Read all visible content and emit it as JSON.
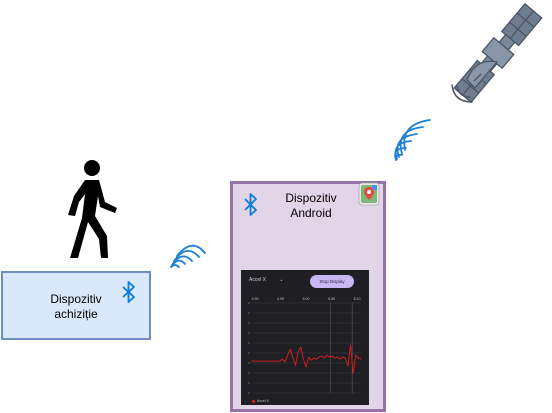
{
  "nodes": {
    "acquisition": {
      "line1": "Dispozitiv",
      "line2": "achiziție"
    },
    "android": {
      "line1": "Dispozitiv",
      "line2": "Android"
    }
  },
  "phone": {
    "selector_label": "Accel X",
    "selector_caret": "⌄",
    "button_label": "Stop Display",
    "axis_ticks": [
      "4.90",
      "4.95",
      "5.00",
      "5.05",
      "5.10"
    ],
    "legend": "Accel X"
  },
  "icons": [
    "walking-person-icon",
    "bluetooth-icon",
    "wireless-signal-icon",
    "satellite-icon",
    "maps-app-icon"
  ],
  "colors": {
    "acq_fill": "#dae8fc",
    "acq_stroke": "#6c8ebf",
    "android_fill": "#e1d5e7",
    "android_stroke": "#9673a6",
    "signal": "#1e7fd8",
    "bluetooth": "#0a7be0",
    "trace": "#e01e1e"
  },
  "chart_data": {
    "type": "line",
    "series": [
      {
        "name": "Accel X",
        "values": [
          0,
          0,
          0,
          0,
          0,
          0,
          0,
          0,
          0,
          0,
          0,
          0,
          0.2,
          -0.1,
          0.6,
          1.2,
          0.3,
          -0.4,
          0.9,
          1.4,
          0.2,
          -0.6,
          0.4,
          0.1,
          0.3,
          0.2,
          0.4,
          0.5,
          0.3,
          0.6,
          0.4,
          0.5,
          0.3,
          0.4,
          0.2,
          0.4,
          0.3,
          -0.5,
          1.6,
          -1.2,
          0.6,
          0.3,
          0.2
        ]
      }
    ],
    "x_tick_labels": [
      "4.90",
      "4.95",
      "5.00",
      "5.05",
      "5.10"
    ]
  }
}
